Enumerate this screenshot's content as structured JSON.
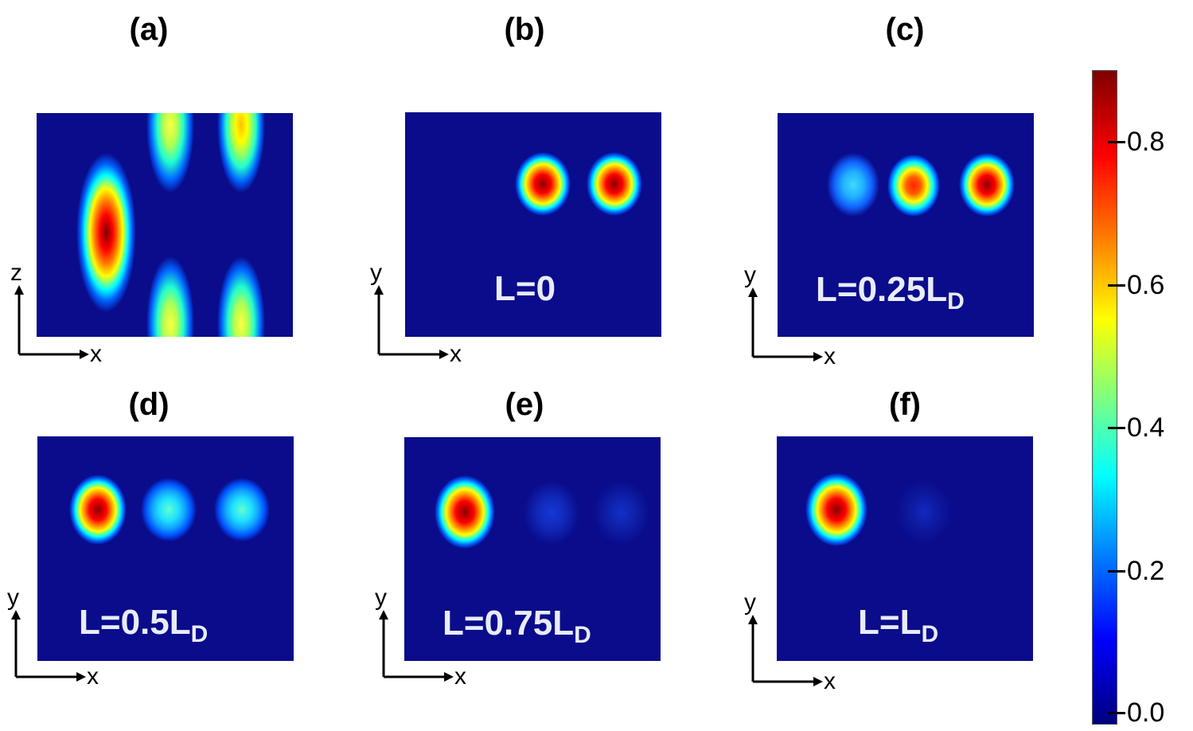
{
  "panels": [
    {
      "id": "a",
      "label": "(a)",
      "length_text": "",
      "subscript": "",
      "axis_x": "x",
      "axis_y": "z"
    },
    {
      "id": "b",
      "label": "(b)",
      "length_text": "L=0",
      "subscript": "",
      "axis_x": "x",
      "axis_y": "y"
    },
    {
      "id": "c",
      "label": "(c)",
      "length_text": "L=0.25L",
      "subscript": "D",
      "axis_x": "x",
      "axis_y": "y"
    },
    {
      "id": "d",
      "label": "(d)",
      "length_text": "L=0.5L",
      "subscript": "D",
      "axis_x": "x",
      "axis_y": "y"
    },
    {
      "id": "e",
      "label": "(e)",
      "length_text": "L=0.75L",
      "subscript": "D",
      "axis_x": "x",
      "axis_y": "y"
    },
    {
      "id": "f",
      "label": "(f)",
      "length_text": "L=L",
      "subscript": "D",
      "axis_x": "x",
      "axis_y": "y"
    }
  ],
  "colorbar": {
    "min": 0.0,
    "max": 0.9,
    "ticks": [
      "0.0",
      "0.2",
      "0.4",
      "0.6",
      "0.8"
    ],
    "colormap": "jet"
  },
  "spot_intensity": {
    "b": [
      0.0,
      0.9,
      0.9
    ],
    "c": [
      0.35,
      0.85,
      0.9
    ],
    "d": [
      0.9,
      0.4,
      0.4
    ],
    "e": [
      0.9,
      0.1,
      0.08
    ],
    "f": [
      0.9,
      0.05,
      0.0
    ]
  }
}
